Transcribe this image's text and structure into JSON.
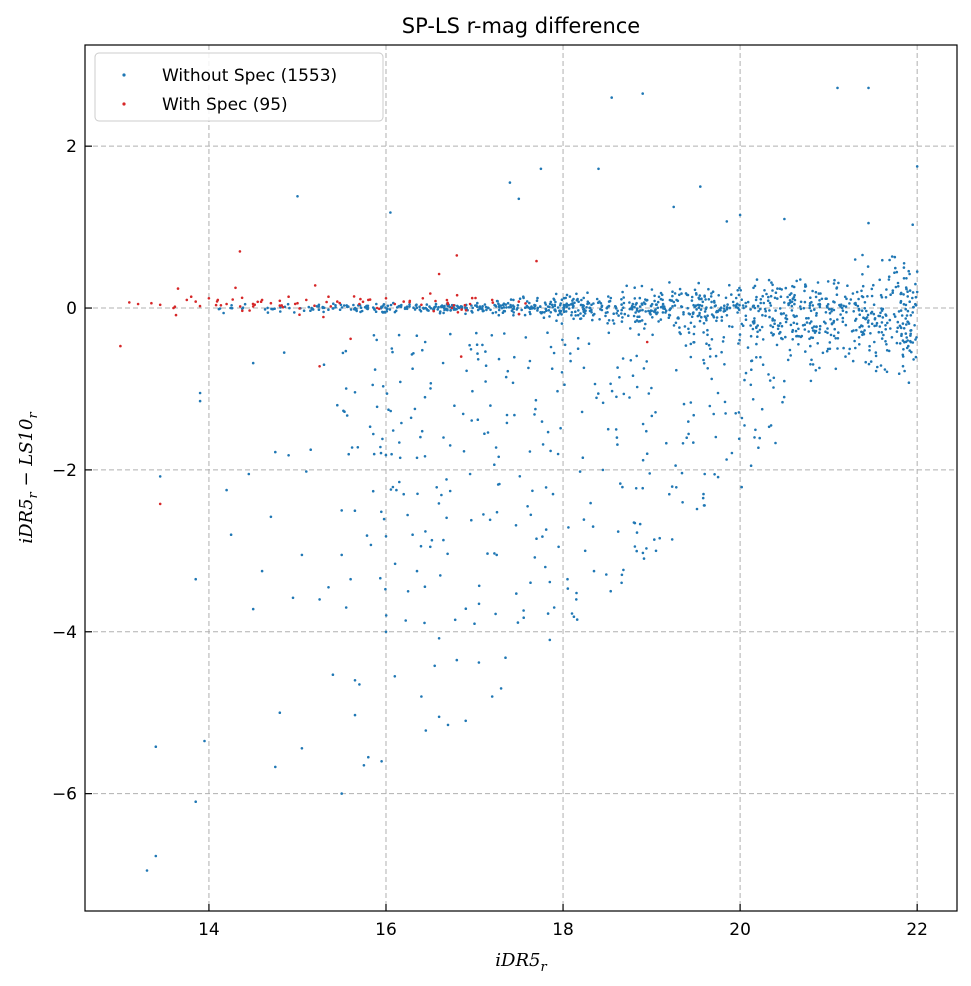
{
  "chart_data": {
    "type": "scatter",
    "title": "SP-LS r-mag difference",
    "xlabel": "iDR5",
    "xlabel_sub": "r",
    "ylabel": "iDR5",
    "ylabel_sub": "r",
    "ylabel_mid": " − LS10",
    "ylabel_sub2": "r",
    "xlim": [
      12.6,
      22.45
    ],
    "ylim": [
      -7.45,
      3.25
    ],
    "xticks": [
      14,
      16,
      18,
      20,
      22
    ],
    "yticks": [
      -6,
      -4,
      -2,
      0,
      2
    ],
    "xtick_labels": [
      "14",
      "16",
      "18",
      "20",
      "22"
    ],
    "ytick_labels": [
      "−6",
      "−4",
      "−2",
      "0",
      "2"
    ],
    "grid": true,
    "legend_position": "top-left",
    "series": [
      {
        "name": "Without Spec (1553)",
        "color": "#1f77b4",
        "total_count": 1553,
        "sample_points": [
          [
            13.3,
            -6.95
          ],
          [
            13.4,
            -6.77
          ],
          [
            13.4,
            -5.42
          ],
          [
            13.45,
            -2.08
          ],
          [
            13.85,
            -6.1
          ],
          [
            13.85,
            -3.35
          ],
          [
            13.9,
            -1.05
          ],
          [
            13.9,
            -1.15
          ],
          [
            13.95,
            -5.35
          ],
          [
            14.2,
            -2.25
          ],
          [
            14.25,
            -2.8
          ],
          [
            14.45,
            -2.05
          ],
          [
            14.5,
            -3.72
          ],
          [
            14.5,
            -0.68
          ],
          [
            14.6,
            -3.25
          ],
          [
            14.7,
            -2.58
          ],
          [
            14.75,
            -5.67
          ],
          [
            14.75,
            -1.78
          ],
          [
            14.8,
            -5.0
          ],
          [
            14.85,
            -0.55
          ],
          [
            14.9,
            -1.82
          ],
          [
            14.95,
            -3.58
          ],
          [
            15.0,
            1.38
          ],
          [
            15.05,
            -3.05
          ],
          [
            15.05,
            -5.44
          ],
          [
            15.1,
            -2.02
          ],
          [
            15.15,
            -1.75
          ],
          [
            15.25,
            -3.6
          ],
          [
            15.3,
            -0.7
          ],
          [
            15.35,
            -3.45
          ],
          [
            15.4,
            -4.53
          ],
          [
            15.45,
            -1.2
          ],
          [
            15.5,
            -6.0
          ],
          [
            15.5,
            -2.5
          ],
          [
            15.5,
            -3.05
          ],
          [
            15.55,
            -3.7
          ],
          [
            15.6,
            -3.35
          ],
          [
            15.65,
            -4.6
          ],
          [
            15.65,
            -5.03
          ],
          [
            15.7,
            -4.65
          ],
          [
            15.75,
            -5.65
          ],
          [
            15.8,
            -5.55
          ],
          [
            15.85,
            -0.95
          ],
          [
            15.9,
            -1.22
          ],
          [
            15.95,
            -5.6
          ],
          [
            16.0,
            -4.0
          ],
          [
            16.0,
            -2.82
          ],
          [
            16.05,
            1.18
          ],
          [
            16.1,
            -4.55
          ],
          [
            16.15,
            -2.15
          ],
          [
            16.2,
            -2.3
          ],
          [
            16.25,
            -3.5
          ],
          [
            16.3,
            -0.75
          ],
          [
            16.3,
            -2.8
          ],
          [
            16.35,
            -1.85
          ],
          [
            16.35,
            -3.25
          ],
          [
            16.4,
            -4.8
          ],
          [
            16.45,
            -5.22
          ],
          [
            16.5,
            -2.95
          ],
          [
            16.55,
            -4.42
          ],
          [
            16.6,
            -4.08
          ],
          [
            16.6,
            -5.05
          ],
          [
            16.65,
            -1.6
          ],
          [
            16.7,
            -5.15
          ],
          [
            16.8,
            -4.35
          ],
          [
            16.9,
            -5.1
          ],
          [
            16.95,
            -2.05
          ],
          [
            17.0,
            -3.9
          ],
          [
            17.05,
            -4.38
          ],
          [
            17.1,
            -2.55
          ],
          [
            17.2,
            -4.8
          ],
          [
            17.25,
            -3.05
          ],
          [
            17.3,
            -4.7
          ],
          [
            17.35,
            -4.32
          ],
          [
            17.4,
            1.55
          ],
          [
            17.5,
            1.35
          ],
          [
            17.6,
            -2.45
          ],
          [
            17.7,
            -2.85
          ],
          [
            17.75,
            1.72
          ],
          [
            17.8,
            -3.2
          ],
          [
            17.85,
            -4.1
          ],
          [
            17.9,
            -3.7
          ],
          [
            17.95,
            -2.95
          ],
          [
            18.05,
            -3.35
          ],
          [
            18.15,
            -3.6
          ],
          [
            18.25,
            -3.0
          ],
          [
            18.35,
            -3.25
          ],
          [
            18.4,
            1.72
          ],
          [
            18.45,
            -2.0
          ],
          [
            18.55,
            2.6
          ],
          [
            18.6,
            -1.5
          ],
          [
            18.8,
            -2.65
          ],
          [
            18.9,
            2.65
          ],
          [
            18.95,
            -1.8
          ],
          [
            19.05,
            -3.0
          ],
          [
            19.2,
            -2.3
          ],
          [
            19.25,
            1.25
          ],
          [
            19.35,
            -2.4
          ],
          [
            19.55,
            1.5
          ],
          [
            19.6,
            -2.05
          ],
          [
            19.75,
            -1.05
          ],
          [
            19.85,
            1.07
          ],
          [
            19.95,
            -1.3
          ],
          [
            20.0,
            1.15
          ],
          [
            20.05,
            -1.45
          ],
          [
            20.25,
            -1.25
          ],
          [
            20.35,
            -1.45
          ],
          [
            20.5,
            1.1
          ],
          [
            20.8,
            -0.9
          ],
          [
            21.1,
            2.72
          ],
          [
            21.1,
            -0.5
          ],
          [
            21.3,
            0.6
          ],
          [
            21.45,
            2.72
          ],
          [
            21.45,
            1.05
          ],
          [
            21.6,
            -0.3
          ],
          [
            21.85,
            0.5
          ],
          [
            21.95,
            1.03
          ],
          [
            22.0,
            1.75
          ],
          [
            22.0,
            0.45
          ],
          [
            22.0,
            0.2
          ]
        ]
      },
      {
        "name": "With Spec (95)",
        "color": "#d62728",
        "total_count": 95,
        "sample_points": [
          [
            13.0,
            -0.47
          ],
          [
            13.1,
            0.07
          ],
          [
            13.2,
            0.05
          ],
          [
            13.35,
            0.06
          ],
          [
            13.45,
            0.04
          ],
          [
            13.45,
            -2.42
          ],
          [
            13.6,
            0.0
          ],
          [
            13.65,
            0.24
          ],
          [
            13.75,
            0.1
          ],
          [
            13.8,
            0.14
          ],
          [
            13.85,
            0.08
          ],
          [
            14.0,
            0.12
          ],
          [
            14.1,
            0.1
          ],
          [
            14.2,
            0.05
          ],
          [
            14.3,
            0.25
          ],
          [
            14.35,
            0.7
          ],
          [
            14.5,
            0.02
          ],
          [
            14.6,
            0.1
          ],
          [
            14.7,
            0.06
          ],
          [
            14.8,
            0.09
          ],
          [
            14.9,
            0.14
          ],
          [
            15.0,
            0.06
          ],
          [
            15.1,
            0.1
          ],
          [
            15.2,
            0.28
          ],
          [
            15.25,
            -0.72
          ],
          [
            15.35,
            0.14
          ],
          [
            15.45,
            0.08
          ],
          [
            15.6,
            -0.38
          ],
          [
            15.7,
            0.05
          ],
          [
            15.8,
            0.1
          ],
          [
            15.9,
            0.0
          ],
          [
            16.0,
            0.12
          ],
          [
            16.1,
            0.05
          ],
          [
            16.2,
            0.08
          ],
          [
            16.4,
            0.04
          ],
          [
            16.5,
            0.18
          ],
          [
            16.6,
            0.42
          ],
          [
            16.7,
            0.05
          ],
          [
            16.8,
            0.65
          ],
          [
            16.85,
            -0.6
          ],
          [
            16.95,
            0.05
          ],
          [
            17.2,
            0.1
          ],
          [
            17.5,
            0.08
          ],
          [
            17.7,
            0.58
          ],
          [
            18.95,
            -0.42
          ]
        ]
      }
    ]
  }
}
